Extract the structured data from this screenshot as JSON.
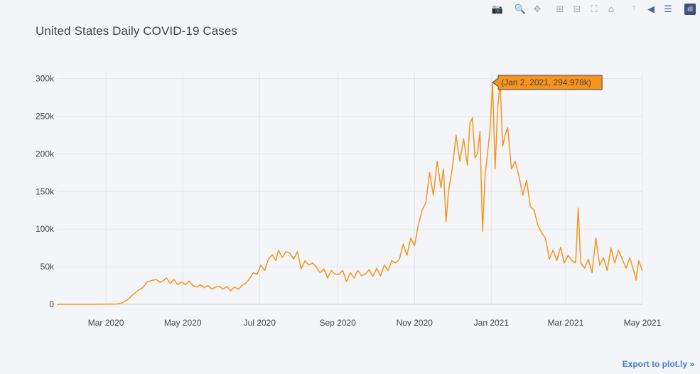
{
  "modebar": {
    "buttons": [
      {
        "icon": "camera-icon",
        "glyph": "📷"
      },
      {
        "icon": "zoom-icon",
        "glyph": "🔍"
      },
      {
        "icon": "pan-icon",
        "glyph": "✥"
      },
      {
        "icon": "zoom-in-icon",
        "glyph": "⊞"
      },
      {
        "icon": "zoom-out-icon",
        "glyph": "⊟"
      },
      {
        "icon": "autoscale-icon",
        "glyph": "⛶"
      },
      {
        "icon": "home-icon",
        "glyph": "⌂"
      },
      {
        "icon": "spike-lines-icon",
        "glyph": "⸆"
      },
      {
        "icon": "hover-closest-icon",
        "glyph": "◀"
      },
      {
        "icon": "hover-compare-icon",
        "glyph": "☰"
      },
      {
        "icon": "plotly-logo-icon",
        "glyph": "ıll"
      }
    ]
  },
  "export_link": "Export to plot.ly »",
  "chart_data": {
    "type": "line",
    "title": "United States Daily COVID-19 Cases",
    "xlabel": "",
    "ylabel": "",
    "color": "#f7941d",
    "x_range": [
      "2020-01-22",
      "2021-05-01"
    ],
    "ylim": [
      0,
      310000
    ],
    "y_ticks": [
      0,
      50000,
      100000,
      150000,
      200000,
      250000,
      300000
    ],
    "y_tick_labels": [
      "0",
      "50k",
      "100k",
      "150k",
      "200k",
      "250k",
      "300k"
    ],
    "x_ticks": [
      "2020-03-01",
      "2020-05-01",
      "2020-07-01",
      "2020-09-01",
      "2020-11-01",
      "2021-01-01",
      "2021-03-01",
      "2021-05-01"
    ],
    "x_tick_labels": [
      "Mar 2020",
      "May 2020",
      "Jul 2020",
      "Sep 2020",
      "Nov 2020",
      "Jan 2021",
      "Mar 2021",
      "May 2021"
    ],
    "grid": true,
    "tooltip": {
      "x": "2021-01-02",
      "y": 294978,
      "text": "(Jan 2, 2021, 294.978k)"
    },
    "series": [
      {
        "points": [
          [
            "2020-01-22",
            0
          ],
          [
            "2020-02-20",
            0
          ],
          [
            "2020-03-10",
            500
          ],
          [
            "2020-03-14",
            2000
          ],
          [
            "2020-03-18",
            6000
          ],
          [
            "2020-03-22",
            12000
          ],
          [
            "2020-03-26",
            18000
          ],
          [
            "2020-03-30",
            22000
          ],
          [
            "2020-04-03",
            30000
          ],
          [
            "2020-04-07",
            32000
          ],
          [
            "2020-04-10",
            33000
          ],
          [
            "2020-04-13",
            29000
          ],
          [
            "2020-04-16",
            32000
          ],
          [
            "2020-04-18",
            35000
          ],
          [
            "2020-04-21",
            28000
          ],
          [
            "2020-04-24",
            33000
          ],
          [
            "2020-04-27",
            26000
          ],
          [
            "2020-04-30",
            30000
          ],
          [
            "2020-05-03",
            26000
          ],
          [
            "2020-05-06",
            31000
          ],
          [
            "2020-05-09",
            25000
          ],
          [
            "2020-05-12",
            23000
          ],
          [
            "2020-05-15",
            26000
          ],
          [
            "2020-05-18",
            22000
          ],
          [
            "2020-05-21",
            25000
          ],
          [
            "2020-05-24",
            20000
          ],
          [
            "2020-05-27",
            23000
          ],
          [
            "2020-05-30",
            24000
          ],
          [
            "2020-06-02",
            20000
          ],
          [
            "2020-06-05",
            24000
          ],
          [
            "2020-06-08",
            18000
          ],
          [
            "2020-06-11",
            23000
          ],
          [
            "2020-06-14",
            20000
          ],
          [
            "2020-06-17",
            25000
          ],
          [
            "2020-06-20",
            28000
          ],
          [
            "2020-06-23",
            34000
          ],
          [
            "2020-06-26",
            42000
          ],
          [
            "2020-06-29",
            40000
          ],
          [
            "2020-07-02",
            52000
          ],
          [
            "2020-07-05",
            45000
          ],
          [
            "2020-07-08",
            60000
          ],
          [
            "2020-07-11",
            66000
          ],
          [
            "2020-07-14",
            58000
          ],
          [
            "2020-07-16",
            72000
          ],
          [
            "2020-07-19",
            62000
          ],
          [
            "2020-07-22",
            70000
          ],
          [
            "2020-07-25",
            68000
          ],
          [
            "2020-07-28",
            60000
          ],
          [
            "2020-07-31",
            70000
          ],
          [
            "2020-08-03",
            47000
          ],
          [
            "2020-08-06",
            58000
          ],
          [
            "2020-08-09",
            52000
          ],
          [
            "2020-08-12",
            55000
          ],
          [
            "2020-08-15",
            50000
          ],
          [
            "2020-08-18",
            42000
          ],
          [
            "2020-08-21",
            47000
          ],
          [
            "2020-08-24",
            35000
          ],
          [
            "2020-08-27",
            45000
          ],
          [
            "2020-08-30",
            40000
          ],
          [
            "2020-09-02",
            40000
          ],
          [
            "2020-09-05",
            45000
          ],
          [
            "2020-09-08",
            30000
          ],
          [
            "2020-09-11",
            42000
          ],
          [
            "2020-09-14",
            35000
          ],
          [
            "2020-09-17",
            45000
          ],
          [
            "2020-09-20",
            38000
          ],
          [
            "2020-09-23",
            40000
          ],
          [
            "2020-09-26",
            46000
          ],
          [
            "2020-09-29",
            37000
          ],
          [
            "2020-10-02",
            48000
          ],
          [
            "2020-10-05",
            38000
          ],
          [
            "2020-10-08",
            52000
          ],
          [
            "2020-10-11",
            45000
          ],
          [
            "2020-10-14",
            58000
          ],
          [
            "2020-10-17",
            55000
          ],
          [
            "2020-10-20",
            60000
          ],
          [
            "2020-10-23",
            80000
          ],
          [
            "2020-10-26",
            65000
          ],
          [
            "2020-10-29",
            88000
          ],
          [
            "2020-11-01",
            78000
          ],
          [
            "2020-11-04",
            105000
          ],
          [
            "2020-11-07",
            125000
          ],
          [
            "2020-11-10",
            135000
          ],
          [
            "2020-11-13",
            175000
          ],
          [
            "2020-11-16",
            145000
          ],
          [
            "2020-11-19",
            190000
          ],
          [
            "2020-11-22",
            155000
          ],
          [
            "2020-11-24",
            180000
          ],
          [
            "2020-11-26",
            110000
          ],
          [
            "2020-11-28",
            150000
          ],
          [
            "2020-12-01",
            180000
          ],
          [
            "2020-12-04",
            225000
          ],
          [
            "2020-12-07",
            190000
          ],
          [
            "2020-12-10",
            220000
          ],
          [
            "2020-12-13",
            185000
          ],
          [
            "2020-12-15",
            240000
          ],
          [
            "2020-12-17",
            248000
          ],
          [
            "2020-12-19",
            195000
          ],
          [
            "2020-12-21",
            200000
          ],
          [
            "2020-12-23",
            230000
          ],
          [
            "2020-12-25",
            97000
          ],
          [
            "2020-12-27",
            170000
          ],
          [
            "2020-12-29",
            200000
          ],
          [
            "2020-12-31",
            233000
          ],
          [
            "2021-01-02",
            294978
          ],
          [
            "2021-01-04",
            180000
          ],
          [
            "2021-01-06",
            260000
          ],
          [
            "2021-01-08",
            295000
          ],
          [
            "2021-01-10",
            210000
          ],
          [
            "2021-01-12",
            225000
          ],
          [
            "2021-01-14",
            235000
          ],
          [
            "2021-01-17",
            180000
          ],
          [
            "2021-01-20",
            190000
          ],
          [
            "2021-01-23",
            170000
          ],
          [
            "2021-01-26",
            145000
          ],
          [
            "2021-01-29",
            165000
          ],
          [
            "2021-02-01",
            130000
          ],
          [
            "2021-02-04",
            125000
          ],
          [
            "2021-02-07",
            105000
          ],
          [
            "2021-02-10",
            95000
          ],
          [
            "2021-02-13",
            88000
          ],
          [
            "2021-02-16",
            60000
          ],
          [
            "2021-02-19",
            72000
          ],
          [
            "2021-02-22",
            58000
          ],
          [
            "2021-02-25",
            76000
          ],
          [
            "2021-02-28",
            55000
          ],
          [
            "2021-03-03",
            65000
          ],
          [
            "2021-03-06",
            58000
          ],
          [
            "2021-03-09",
            55000
          ],
          [
            "2021-03-11",
            128000
          ],
          [
            "2021-03-13",
            55000
          ],
          [
            "2021-03-16",
            48000
          ],
          [
            "2021-03-19",
            60000
          ],
          [
            "2021-03-22",
            42000
          ],
          [
            "2021-03-25",
            88000
          ],
          [
            "2021-03-28",
            52000
          ],
          [
            "2021-03-31",
            62000
          ],
          [
            "2021-04-03",
            45000
          ],
          [
            "2021-04-06",
            75000
          ],
          [
            "2021-04-09",
            55000
          ],
          [
            "2021-04-12",
            72000
          ],
          [
            "2021-04-15",
            60000
          ],
          [
            "2021-04-18",
            48000
          ],
          [
            "2021-04-21",
            62000
          ],
          [
            "2021-04-24",
            45000
          ],
          [
            "2021-04-26",
            32000
          ],
          [
            "2021-04-28",
            58000
          ],
          [
            "2021-05-01",
            45000
          ]
        ]
      }
    ]
  }
}
